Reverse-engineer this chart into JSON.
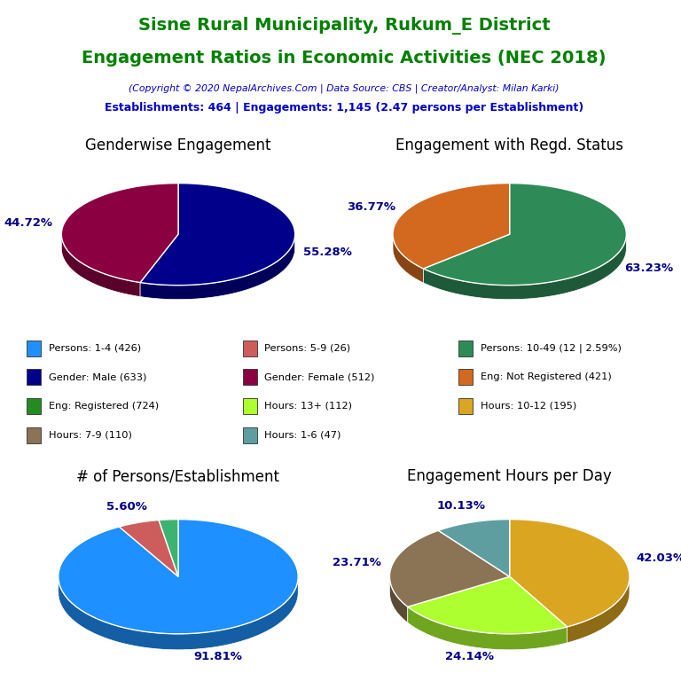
{
  "title_line1": "Sisne Rural Municipality, Rukum_E District",
  "title_line2": "Engagement Ratios in Economic Activities (NEC 2018)",
  "subtitle": "(Copyright © 2020 NepalArchives.Com | Data Source: CBS | Creator/Analyst: Milan Karki)",
  "stats_line": "Establishments: 464 | Engagements: 1,145 (2.47 persons per Establishment)",
  "title_color": "#008000",
  "subtitle_color": "#0000cc",
  "stats_color": "#0000cc",
  "pie1_title": "Genderwise Engagement",
  "pie1_values": [
    55.28,
    44.72
  ],
  "pie1_colors": [
    "#00008B",
    "#8B0040"
  ],
  "pie1_labels": [
    "55.28%",
    "44.72%"
  ],
  "pie2_title": "Engagement with Regd. Status",
  "pie2_values": [
    63.23,
    36.77
  ],
  "pie2_colors": [
    "#2E8B57",
    "#D2691E"
  ],
  "pie2_labels": [
    "63.23%",
    "36.77%"
  ],
  "pie3_title": "# of Persons/Establishment",
  "pie3_values": [
    91.81,
    5.6,
    2.59
  ],
  "pie3_colors": [
    "#1E90FF",
    "#CD5C5C",
    "#3CB371"
  ],
  "pie3_labels": [
    "91.81%",
    "5.60%",
    ""
  ],
  "pie4_title": "Engagement Hours per Day",
  "pie4_values": [
    42.03,
    24.14,
    23.71,
    10.13
  ],
  "pie4_colors": [
    "#DAA520",
    "#ADFF2F",
    "#8B7355",
    "#5F9EA0"
  ],
  "pie4_labels": [
    "42.03%",
    "24.14%",
    "23.71%",
    "10.13%"
  ],
  "legend_items": [
    {
      "label": "Persons: 1-4 (426)",
      "color": "#1E90FF"
    },
    {
      "label": "Persons: 5-9 (26)",
      "color": "#CD5C5C"
    },
    {
      "label": "Persons: 10-49 (12 | 2.59%)",
      "color": "#2E8B57"
    },
    {
      "label": "Gender: Male (633)",
      "color": "#00008B"
    },
    {
      "label": "Gender: Female (512)",
      "color": "#8B0040"
    },
    {
      "label": "Eng: Not Registered (421)",
      "color": "#D2691E"
    },
    {
      "label": "Eng: Registered (724)",
      "color": "#228B22"
    },
    {
      "label": "Hours: 13+ (112)",
      "color": "#ADFF2F"
    },
    {
      "label": "Hours: 10-12 (195)",
      "color": "#DAA520"
    },
    {
      "label": "Hours: 7-9 (110)",
      "color": "#8B7355"
    },
    {
      "label": "Hours: 1-6 (47)",
      "color": "#5F9EA0"
    }
  ],
  "label_color": "#00008B",
  "pie_title_fontsize": 12,
  "label_fontsize": 9.5
}
